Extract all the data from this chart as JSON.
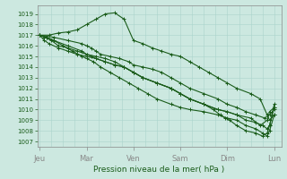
{
  "xlabel": "Pression niveau de la mer( hPa )",
  "ylim": [
    1006.5,
    1019.8
  ],
  "yticks": [
    1007,
    1008,
    1009,
    1010,
    1011,
    1012,
    1013,
    1014,
    1015,
    1016,
    1017,
    1018,
    1019
  ],
  "xtick_labels": [
    "Jeu",
    "Mar",
    "Ven",
    "Sam",
    "Dim",
    "Lun"
  ],
  "xtick_positions": [
    0,
    1,
    2,
    3,
    4,
    5
  ],
  "bg_color": "#cce8e0",
  "grid_color": "#aad4cc",
  "line_color": "#1a5c1a",
  "line_width": 0.8,
  "series": [
    {
      "x": [
        0.0,
        0.3,
        0.6,
        0.9,
        1.0,
        1.1,
        1.2,
        1.3,
        1.5,
        1.7,
        1.9,
        2.0,
        2.2,
        2.4,
        2.6,
        2.8,
        3.0,
        3.2,
        3.5,
        3.8,
        4.0,
        4.2,
        4.4,
        4.6,
        4.8,
        4.9,
        5.0
      ],
      "y": [
        1017.0,
        1016.8,
        1016.5,
        1016.2,
        1016.0,
        1015.8,
        1015.5,
        1015.2,
        1015.0,
        1014.8,
        1014.5,
        1014.2,
        1014.0,
        1013.8,
        1013.5,
        1013.0,
        1012.5,
        1012.0,
        1011.5,
        1011.0,
        1010.5,
        1010.2,
        1009.8,
        1009.5,
        1009.2,
        1009.5,
        1010.0
      ]
    },
    {
      "x": [
        0.0,
        0.2,
        0.4,
        0.6,
        0.8,
        1.0,
        1.2,
        1.4,
        1.6,
        1.8,
        2.0,
        2.2,
        2.4,
        2.6,
        2.8,
        3.0,
        3.2,
        3.4,
        3.6,
        3.8,
        4.0,
        4.2,
        4.5,
        4.7,
        4.85,
        4.9,
        5.0
      ],
      "y": [
        1017.0,
        1017.0,
        1017.2,
        1017.3,
        1017.5,
        1018.0,
        1018.5,
        1019.0,
        1019.1,
        1018.5,
        1016.5,
        1016.2,
        1015.8,
        1015.5,
        1015.2,
        1015.0,
        1014.5,
        1014.0,
        1013.5,
        1013.0,
        1012.5,
        1012.0,
        1011.5,
        1011.0,
        1009.5,
        1009.0,
        1009.5
      ]
    },
    {
      "x": [
        0.0,
        0.15,
        0.3,
        0.6,
        0.9,
        1.0,
        1.1,
        1.2,
        1.4,
        1.6,
        1.8,
        2.0,
        2.2,
        2.5,
        2.8,
        3.0,
        3.2,
        3.5,
        3.8,
        4.0,
        4.2,
        4.5,
        4.7,
        4.85,
        4.9,
        5.0
      ],
      "y": [
        1017.0,
        1016.8,
        1016.5,
        1016.0,
        1015.5,
        1015.2,
        1015.0,
        1014.8,
        1014.5,
        1014.2,
        1014.0,
        1013.5,
        1013.0,
        1012.5,
        1012.0,
        1011.5,
        1011.0,
        1010.5,
        1010.0,
        1009.8,
        1009.5,
        1009.2,
        1008.5,
        1009.0,
        1009.8,
        1010.2
      ]
    },
    {
      "x": [
        0.0,
        0.15,
        0.3,
        0.5,
        0.7,
        0.9,
        1.0,
        1.15,
        1.3,
        1.5,
        1.7,
        1.9,
        2.1,
        2.3,
        2.5,
        2.8,
        3.0,
        3.2,
        3.5,
        3.8,
        4.0,
        4.2,
        4.4,
        4.6,
        4.75,
        4.85,
        4.9,
        5.0
      ],
      "y": [
        1017.0,
        1016.8,
        1016.5,
        1016.0,
        1015.5,
        1015.0,
        1014.8,
        1014.5,
        1014.0,
        1013.5,
        1013.0,
        1012.5,
        1012.0,
        1011.5,
        1011.0,
        1010.5,
        1010.2,
        1010.0,
        1009.8,
        1009.5,
        1009.2,
        1009.0,
        1008.5,
        1008.2,
        1007.8,
        1007.5,
        1008.0,
        1009.5
      ]
    },
    {
      "x": [
        0.0,
        0.1,
        0.25,
        0.4,
        0.6,
        0.8,
        1.0,
        1.2,
        1.4,
        1.6,
        1.8,
        2.0,
        2.2,
        2.5,
        2.8,
        3.0,
        3.2,
        3.5,
        3.7,
        3.85,
        3.95,
        4.05,
        4.2,
        4.4,
        4.6,
        4.75,
        4.85,
        4.9,
        5.0
      ],
      "y": [
        1017.0,
        1016.8,
        1016.5,
        1016.0,
        1015.8,
        1015.5,
        1015.2,
        1015.0,
        1014.8,
        1014.5,
        1014.0,
        1013.5,
        1013.0,
        1012.5,
        1012.0,
        1011.5,
        1011.0,
        1010.5,
        1010.0,
        1009.5,
        1009.2,
        1009.0,
        1008.5,
        1008.0,
        1007.8,
        1007.5,
        1007.8,
        1008.5,
        1010.2
      ]
    },
    {
      "x": [
        0.0,
        0.1,
        0.2,
        0.4,
        0.6,
        0.8,
        1.0,
        1.2,
        1.4,
        1.6,
        1.8,
        2.0,
        2.2,
        2.5,
        2.8,
        3.0,
        3.2,
        3.5,
        3.8,
        4.0,
        4.2,
        4.4,
        4.6,
        4.75,
        4.85,
        4.9,
        5.0
      ],
      "y": [
        1017.0,
        1016.5,
        1016.2,
        1015.8,
        1015.5,
        1015.2,
        1015.0,
        1014.8,
        1014.5,
        1014.2,
        1014.0,
        1013.5,
        1013.0,
        1012.5,
        1012.0,
        1011.5,
        1011.0,
        1010.5,
        1010.0,
        1009.8,
        1009.5,
        1009.0,
        1008.8,
        1008.5,
        1008.2,
        1008.5,
        1010.5
      ]
    }
  ]
}
